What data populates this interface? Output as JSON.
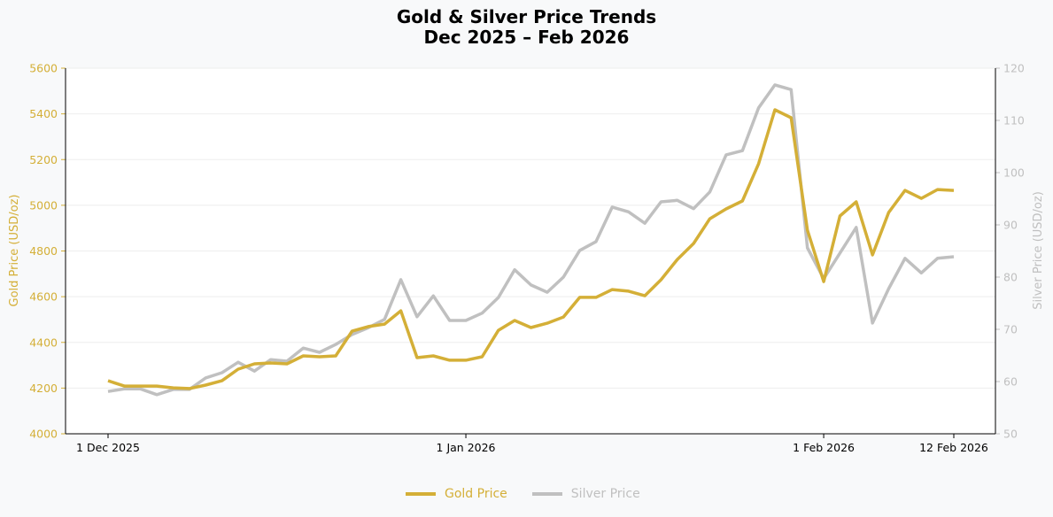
{
  "title": {
    "line1": "Gold & Silver Price Trends",
    "line2": "Dec 2025 – Feb 2026"
  },
  "colors": {
    "gold": "#D4AF37",
    "silver": "#C0C0C0",
    "background": "#F8F9FA",
    "plot_background": "#FFFFFF"
  },
  "legend": {
    "gold_label": "Gold Price",
    "silver_label": "Silver Price"
  },
  "axes": {
    "y_left_label": "Gold Price (USD/oz)",
    "y_right_label": "Silver Price (USD/oz)",
    "y_left_ticks": [
      "4000",
      "4200",
      "4400",
      "4600",
      "4800",
      "5000",
      "5200",
      "5400",
      "5600"
    ],
    "y_right_ticks": [
      "50",
      "60",
      "70",
      "80",
      "90",
      "100",
      "110",
      "120"
    ],
    "x_ticks": [
      {
        "label": "1 Dec 2025",
        "index": 0
      },
      {
        "label": "1 Jan 2026",
        "index": 22
      },
      {
        "label": "1 Feb 2026",
        "index": 44
      },
      {
        "label": "12 Feb 2026",
        "index": 52
      }
    ]
  },
  "chart_data": {
    "type": "line",
    "title": "Gold & Silver Price Trends Dec 2025 – Feb 2026",
    "xlabel": "",
    "ylabel": "Gold Price (USD/oz)",
    "ylabel_right": "Silver Price (USD/oz)",
    "ylim": [
      4000,
      5600
    ],
    "ylim_right": [
      50,
      120
    ],
    "grid": true,
    "legend_position": "bottom-center",
    "x_tick_labels": [
      "1 Dec 2025",
      "1 Jan 2026",
      "1 Feb 2026",
      "12 Feb 2026"
    ],
    "n_points": 53,
    "series": [
      {
        "name": "Gold Price",
        "axis": "left",
        "color": "#D4AF37",
        "values": [
          4232,
          4209,
          4209,
          4209,
          4201,
          4198,
          4213,
          4232,
          4283,
          4306,
          4310,
          4306,
          4341,
          4337,
          4341,
          4449,
          4469,
          4480,
          4538,
          4333,
          4341,
          4322,
          4322,
          4337,
          4453,
          4496,
          4465,
          4484,
          4511,
          4597,
          4597,
          4631,
          4624,
          4604,
          4674,
          4763,
          4833,
          4941,
          4984,
          5019,
          5182,
          5418,
          5383,
          4891,
          4666,
          4953,
          5015,
          4783,
          4969,
          5065,
          5030,
          5069,
          5065
        ]
      },
      {
        "name": "Silver Price",
        "axis": "right",
        "color": "#C0C0C0",
        "values": [
          58.1,
          58.6,
          58.6,
          57.5,
          58.5,
          58.5,
          60.7,
          61.7,
          63.7,
          62.0,
          64.2,
          63.9,
          66.4,
          65.6,
          67.1,
          69.0,
          70.3,
          71.9,
          79.5,
          72.4,
          76.4,
          71.7,
          71.7,
          73.1,
          76.1,
          81.4,
          78.5,
          77.1,
          80.0,
          85.1,
          86.8,
          93.4,
          92.5,
          90.3,
          94.4,
          94.7,
          93.1,
          96.3,
          103.4,
          104.2,
          112.4,
          116.8,
          115.9,
          85.6,
          79.7,
          84.6,
          89.5,
          71.2,
          77.8,
          83.6,
          80.8,
          83.6,
          83.9
        ]
      }
    ]
  }
}
